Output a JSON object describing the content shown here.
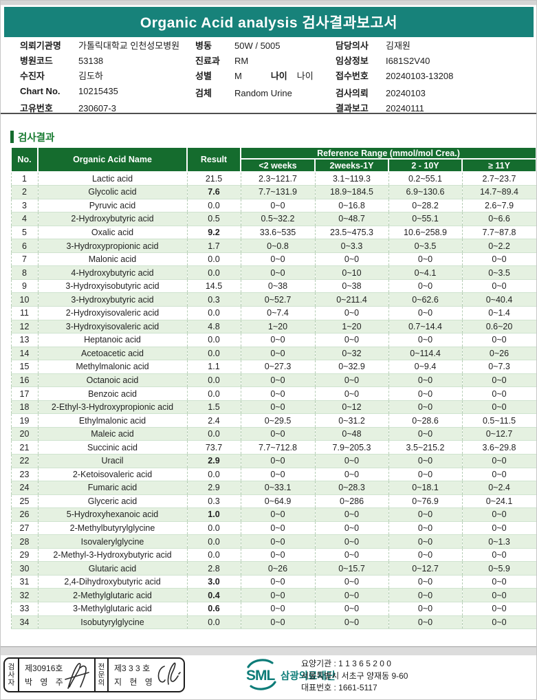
{
  "title": "Organic Acid analysis 검사결과보고서",
  "patient_info": {
    "left": [
      {
        "label": "의뢰기관명",
        "value": "가톨릭대학교 인천성모병원"
      },
      {
        "label": "병원코드",
        "value": "53138"
      },
      {
        "label": "수진자",
        "value": "김도하"
      },
      {
        "label": "Chart No.",
        "value": "10215435"
      },
      {
        "label": "고유번호",
        "value": "230607-3"
      }
    ],
    "middle": [
      {
        "label": "병동",
        "value": "50W / 5005"
      },
      {
        "label": "진료과",
        "value": "RM"
      },
      {
        "label": "성별",
        "value": "M",
        "extra_label": "나이",
        "extra_value": "나이"
      },
      {
        "label": "검체",
        "value": "Random Urine"
      }
    ],
    "right": [
      {
        "label": "담당의사",
        "value": "김재원"
      },
      {
        "label": "임상정보",
        "value": "I681S2V40"
      },
      {
        "label": "접수번호",
        "value": "20240103-13208"
      },
      {
        "label": "검사의뢰",
        "value": "20240103"
      },
      {
        "label": "결과보고",
        "value": "20240111"
      }
    ]
  },
  "section_title": "검사결과",
  "table": {
    "headers": {
      "no": "No.",
      "name": "Organic Acid Name",
      "result": "Result",
      "reference_group": "Reference Range (mmol/mol Crea.)",
      "sub": [
        "<2 weeks",
        "2weeks-1Y",
        "2 - 10Y",
        "≥ 11Y"
      ]
    },
    "rows": [
      {
        "no": 1,
        "name": "Lactic acid",
        "result": "21.5",
        "flag": "normal",
        "ranges": [
          "2.3~121.7",
          "3.1~119.3",
          "0.2~55.1",
          "2.7~23.7"
        ]
      },
      {
        "no": 2,
        "name": "Glycolic acid",
        "result": "7.6",
        "flag": "blue",
        "ranges": [
          "7.7~131.9",
          "18.9~184.5",
          "6.9~130.6",
          "14.7~89.4"
        ]
      },
      {
        "no": 3,
        "name": "Pyruvic acid",
        "result": "0.0",
        "flag": "normal",
        "ranges": [
          "0~0",
          "0~16.8",
          "0~28.2",
          "2.6~7.9"
        ]
      },
      {
        "no": 4,
        "name": "2-Hydroxybutyric acid",
        "result": "0.5",
        "flag": "normal",
        "ranges": [
          "0.5~32.2",
          "0~48.7",
          "0~55.1",
          "0~6.6"
        ]
      },
      {
        "no": 5,
        "name": "Oxalic acid",
        "result": "9.2",
        "flag": "blue",
        "ranges": [
          "33.6~535",
          "23.5~475.3",
          "10.6~258.9",
          "7.7~87.8"
        ]
      },
      {
        "no": 6,
        "name": "3-Hydroxypropionic acid",
        "result": "1.7",
        "flag": "normal",
        "ranges": [
          "0~0.8",
          "0~3.3",
          "0~3.5",
          "0~2.2"
        ]
      },
      {
        "no": 7,
        "name": "Malonic acid",
        "result": "0.0",
        "flag": "normal",
        "ranges": [
          "0~0",
          "0~0",
          "0~0",
          "0~0"
        ]
      },
      {
        "no": 8,
        "name": "4-Hydroxybutyric acid",
        "result": "0.0",
        "flag": "normal",
        "ranges": [
          "0~0",
          "0~10",
          "0~4.1",
          "0~3.5"
        ]
      },
      {
        "no": 9,
        "name": "3-Hydroxyisobutyric acid",
        "result": "14.5",
        "flag": "normal",
        "ranges": [
          "0~38",
          "0~38",
          "0~0",
          "0~0"
        ]
      },
      {
        "no": 10,
        "name": "3-Hydroxybutyric acid",
        "result": "0.3",
        "flag": "normal",
        "ranges": [
          "0~52.7",
          "0~211.4",
          "0~62.6",
          "0~40.4"
        ]
      },
      {
        "no": 11,
        "name": "2-Hydroxyisovaleric acid",
        "result": "0.0",
        "flag": "normal",
        "ranges": [
          "0~7.4",
          "0~0",
          "0~0",
          "0~1.4"
        ]
      },
      {
        "no": 12,
        "name": "3-Hydroxyisovaleric acid",
        "result": "4.8",
        "flag": "normal",
        "ranges": [
          "1~20",
          "1~20",
          "0.7~14.4",
          "0.6~20"
        ]
      },
      {
        "no": 13,
        "name": "Heptanoic acid",
        "result": "0.0",
        "flag": "normal",
        "ranges": [
          "0~0",
          "0~0",
          "0~0",
          "0~0"
        ]
      },
      {
        "no": 14,
        "name": "Acetoacetic acid",
        "result": "0.0",
        "flag": "normal",
        "ranges": [
          "0~0",
          "0~32",
          "0~114.4",
          "0~26"
        ]
      },
      {
        "no": 15,
        "name": "Methylmalonic acid",
        "result": "1.1",
        "flag": "normal",
        "ranges": [
          "0~27.3",
          "0~32.9",
          "0~9.4",
          "0~7.3"
        ]
      },
      {
        "no": 16,
        "name": "Octanoic acid",
        "result": "0.0",
        "flag": "normal",
        "ranges": [
          "0~0",
          "0~0",
          "0~0",
          "0~0"
        ]
      },
      {
        "no": 17,
        "name": "Benzoic acid",
        "result": "0.0",
        "flag": "normal",
        "ranges": [
          "0~0",
          "0~0",
          "0~0",
          "0~0"
        ]
      },
      {
        "no": 18,
        "name": "2-Ethyl-3-Hydroxypropionic acid",
        "result": "1.5",
        "flag": "normal",
        "ranges": [
          "0~0",
          "0~12",
          "0~0",
          "0~0"
        ]
      },
      {
        "no": 19,
        "name": "Ethylmalonic acid",
        "result": "2.4",
        "flag": "normal",
        "ranges": [
          "0~29.5",
          "0~31.2",
          "0~28.6",
          "0.5~11.5"
        ]
      },
      {
        "no": 20,
        "name": "Maleic acid",
        "result": "0.0",
        "flag": "normal",
        "ranges": [
          "0~0",
          "0~48",
          "0~0",
          "0~12.7"
        ]
      },
      {
        "no": 21,
        "name": "Succinic acid",
        "result": "73.7",
        "flag": "normal",
        "ranges": [
          "7.7~712.8",
          "7.9~205.3",
          "3.5~215.2",
          "3.6~29.8"
        ]
      },
      {
        "no": 22,
        "name": "Uracil",
        "result": "2.9",
        "flag": "red",
        "ranges": [
          "0~0",
          "0~0",
          "0~0",
          "0~0"
        ]
      },
      {
        "no": 23,
        "name": "2-Ketoisovaleric acid",
        "result": "0.0",
        "flag": "normal",
        "ranges": [
          "0~0",
          "0~0",
          "0~0",
          "0~0"
        ]
      },
      {
        "no": 24,
        "name": "Fumaric acid",
        "result": "2.9",
        "flag": "normal",
        "ranges": [
          "0~33.1",
          "0~28.3",
          "0~18.1",
          "0~2.4"
        ]
      },
      {
        "no": 25,
        "name": "Glyceric acid",
        "result": "0.3",
        "flag": "normal",
        "ranges": [
          "0~64.9",
          "0~286",
          "0~76.9",
          "0~24.1"
        ]
      },
      {
        "no": 26,
        "name": "5-Hydroxyhexanoic acid",
        "result": "1.0",
        "flag": "red",
        "ranges": [
          "0~0",
          "0~0",
          "0~0",
          "0~0"
        ]
      },
      {
        "no": 27,
        "name": "2-Methylbutyrylglycine",
        "result": "0.0",
        "flag": "normal",
        "ranges": [
          "0~0",
          "0~0",
          "0~0",
          "0~0"
        ]
      },
      {
        "no": 28,
        "name": "Isovalerylglycine",
        "result": "0.0",
        "flag": "normal",
        "ranges": [
          "0~0",
          "0~0",
          "0~0",
          "0~1.3"
        ]
      },
      {
        "no": 29,
        "name": "2-Methyl-3-Hydroxybutyric acid",
        "result": "0.0",
        "flag": "normal",
        "ranges": [
          "0~0",
          "0~0",
          "0~0",
          "0~0"
        ]
      },
      {
        "no": 30,
        "name": "Glutaric acid",
        "result": "2.8",
        "flag": "normal",
        "ranges": [
          "0~26",
          "0~15.7",
          "0~12.7",
          "0~5.9"
        ]
      },
      {
        "no": 31,
        "name": "2,4-Dihydroxybutyric acid",
        "result": "3.0",
        "flag": "red",
        "ranges": [
          "0~0",
          "0~0",
          "0~0",
          "0~0"
        ]
      },
      {
        "no": 32,
        "name": "2-Methylglutaric acid",
        "result": "0.4",
        "flag": "red",
        "ranges": [
          "0~0",
          "0~0",
          "0~0",
          "0~0"
        ]
      },
      {
        "no": 33,
        "name": "3-Methylglutaric acid",
        "result": "0.6",
        "flag": "red",
        "ranges": [
          "0~0",
          "0~0",
          "0~0",
          "0~0"
        ]
      },
      {
        "no": 34,
        "name": "Isobutyrylglycine",
        "result": "0.0",
        "flag": "normal",
        "ranges": [
          "0~0",
          "0~0",
          "0~0",
          "0~0"
        ]
      }
    ]
  },
  "footer": {
    "stamp": {
      "examiner_role": "검사자",
      "examiner_no": "제30916호",
      "examiner_name": "박 영 주",
      "specialist_role": "전문의",
      "specialist_no": "제3 3 3 호",
      "specialist_name": "지 현 영"
    },
    "org": {
      "logo": "SML",
      "name": "삼광의료재단",
      "lines": [
        "요양기관 : 1 1 3 6 5 2 0 0",
        "서울특별시 서초구 양재동 9-60",
        "대표번호 : 1661-5117"
      ]
    }
  },
  "colors": {
    "title_bar_teal": "#17827a",
    "table_header_green": "#156c2e",
    "alt_row_green": "#e5f1e1",
    "result_blue": "#2b35cb",
    "result_red": "#e21f1f",
    "range_gray": "#a8aea8",
    "logo_teal": "#0d7c78"
  }
}
